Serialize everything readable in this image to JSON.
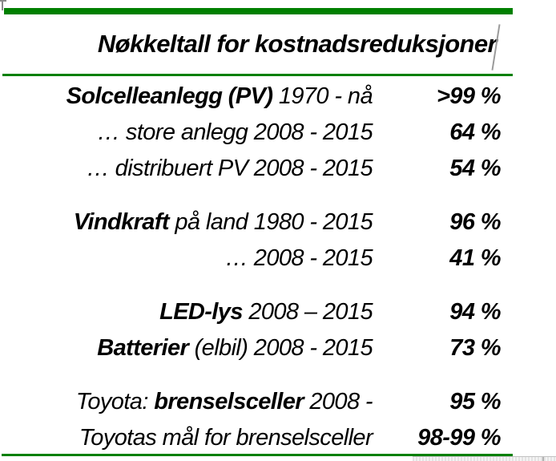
{
  "page": {
    "background": "#ffffff",
    "accent_green": "#008000",
    "text_color": "#000000",
    "artifact_gray": "#9a9a9a"
  },
  "header": {
    "title": "Nøkkeltall for kostnadsreduksjoner"
  },
  "table": {
    "rows": [
      {
        "parts": [
          {
            "text": "Solcelleanlegg (PV)",
            "bold": true
          },
          {
            "text": " 1970 - nå",
            "bold": false
          }
        ],
        "value": ">99 %",
        "gap": false
      },
      {
        "parts": [
          {
            "text": "… store anlegg 2008 - 2015",
            "bold": false
          }
        ],
        "value": "64 %",
        "gap": false
      },
      {
        "parts": [
          {
            "text": "… distribuert PV 2008 - 2015",
            "bold": false
          }
        ],
        "value": "54 %",
        "gap": false
      },
      {
        "parts": [
          {
            "text": "Vindkraft",
            "bold": true
          },
          {
            "text": " på land 1980 - 2015",
            "bold": false
          }
        ],
        "value": "96 %",
        "gap": true
      },
      {
        "parts": [
          {
            "text": "… 2008 - 2015",
            "bold": false
          }
        ],
        "value": "41 %",
        "gap": false
      },
      {
        "parts": [
          {
            "text": "LED-lys",
            "bold": true
          },
          {
            "text": " 2008 – 2015",
            "bold": false
          }
        ],
        "value": "94 %",
        "gap": true
      },
      {
        "parts": [
          {
            "text": "Batterier",
            "bold": true
          },
          {
            "text": " (elbil) 2008 - 2015",
            "bold": false
          }
        ],
        "value": "73 %",
        "gap": false
      },
      {
        "parts": [
          {
            "text": "Toyota: ",
            "bold": false
          },
          {
            "text": "brenselsceller",
            "bold": true
          },
          {
            "text": " 2008 -",
            "bold": false
          }
        ],
        "value": "95 %",
        "gap": true
      },
      {
        "parts": [
          {
            "text": "Toyotas mål for brenselsceller",
            "bold": false
          }
        ],
        "value": "98-99 %",
        "gap": false
      }
    ]
  },
  "decorations": {
    "text_caret_icon": "text-cursor",
    "selection_corner_icon": "selection-handle",
    "scrollbar_icon": "horizontal-scrollbar"
  }
}
